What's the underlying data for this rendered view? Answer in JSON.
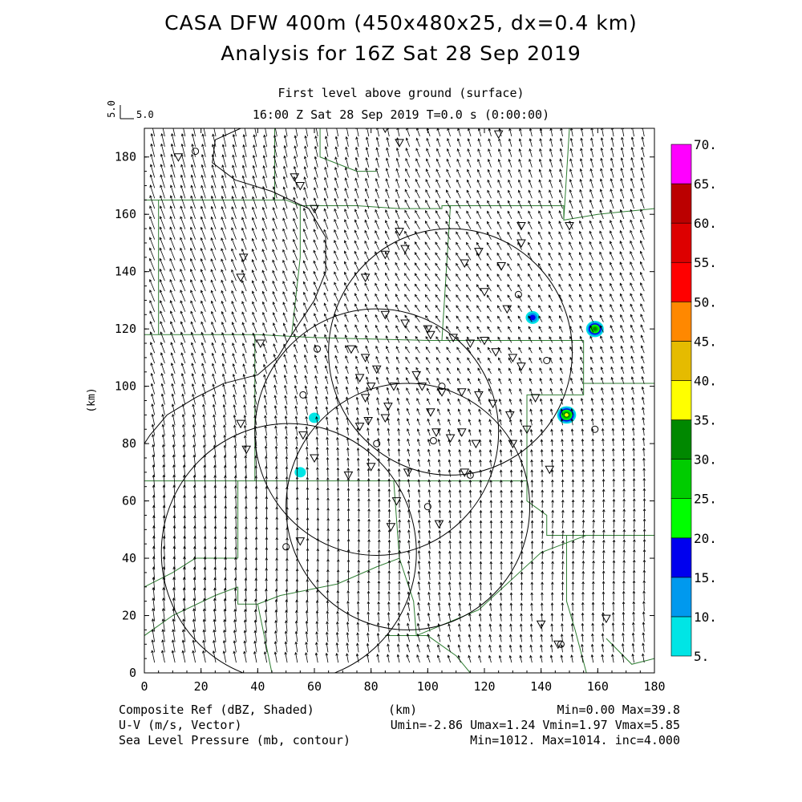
{
  "titles": {
    "line1": "CASA DFW 400m (450x480x25, dx=0.4 km)",
    "line2": "Analysis for 16Z Sat 28 Sep 2019",
    "subtitle1": "First level above ground (surface)",
    "subtitle2": "16:00 Z Sat 28 Sep 2019    T=0.0 s (0:00:00)"
  },
  "reference_vector": {
    "label": "5.0",
    "value_label": "5.0"
  },
  "footer": {
    "left1": "Composite Ref (dBZ, Shaded)",
    "left2": "U-V (m/s, Vector)",
    "left3": "Sea Level Pressure (mb, contour)",
    "xunit": "(km)",
    "right1": "Min=0.00 Max=39.8",
    "right2": "Umin=-2.86 Umax=1.24 Vmin=1.97 Vmax=5.85",
    "right3": "Min=1012. Max=1014. inc=4.000"
  },
  "colorbar": {
    "labels": [
      "5.",
      "10.",
      "15.",
      "20.",
      "25.",
      "30.",
      "35.",
      "40.",
      "45.",
      "50.",
      "55.",
      "60.",
      "65.",
      "70."
    ],
    "colors": [
      "#00e5e5",
      "#0099ee",
      "#0000ee",
      "#00ff00",
      "#00cc00",
      "#008800",
      "#ffff00",
      "#e5bb00",
      "#ff8800",
      "#ff0000",
      "#dd0000",
      "#bb0000",
      "#ff00ff"
    ]
  },
  "chart_data": {
    "type": "field-map",
    "xlabel": "(km)",
    "ylabel": "(km)",
    "xlim": [
      0,
      180
    ],
    "ylim": [
      0,
      190
    ],
    "xticks": [
      0,
      20,
      40,
      60,
      80,
      100,
      120,
      140,
      160,
      180
    ],
    "yticks": [
      0,
      20,
      40,
      60,
      80,
      100,
      120,
      140,
      160,
      180
    ],
    "wind": {
      "u_range": [
        -2.86,
        1.24
      ],
      "v_range": [
        1.97,
        5.85
      ],
      "ref_vector": 5.0
    },
    "radar_rings": [
      {
        "center": [
          108,
          112
        ],
        "radius": 43
      },
      {
        "center": [
          82,
          84
        ],
        "radius": 43
      },
      {
        "center": [
          93,
          58
        ],
        "radius": 43
      },
      {
        "center": [
          51,
          42
        ],
        "radius": 45
      }
    ],
    "echoes": [
      {
        "x": 137,
        "y": 124,
        "dbz": 15
      },
      {
        "x": 159,
        "y": 120,
        "dbz": 30
      },
      {
        "x": 149,
        "y": 90,
        "dbz": 35
      },
      {
        "x": 60,
        "y": 89,
        "dbz": 5
      },
      {
        "x": 55,
        "y": 70,
        "dbz": 5
      }
    ]
  }
}
